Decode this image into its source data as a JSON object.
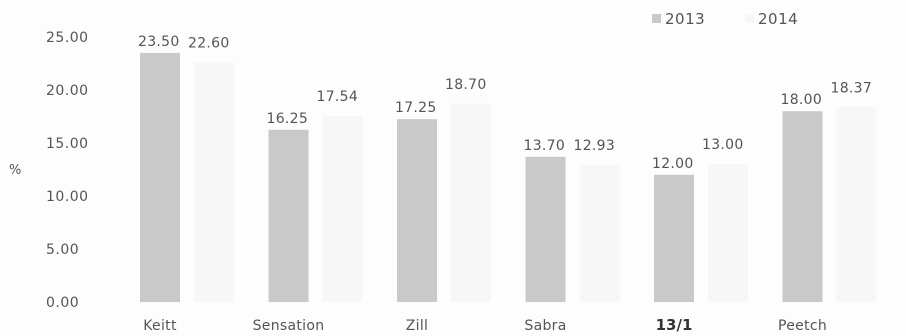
{
  "chart_data": {
    "type": "bar",
    "title": "",
    "xlabel": "",
    "ylabel": "%",
    "ylim": [
      0,
      25
    ],
    "yticks": [
      "0.00",
      "5.00",
      "10.00",
      "15.00",
      "20.00",
      "25.00"
    ],
    "categories": [
      "Keitt",
      "Sensation",
      "Zill",
      "Sabra",
      "13/1",
      "Peetch"
    ],
    "series": [
      {
        "name": "2013",
        "values": [
          23.5,
          16.25,
          17.25,
          13.7,
          12.0,
          18.0
        ],
        "labels": [
          "23.50",
          "16.25",
          "17.25",
          "13.70",
          "12.00",
          "18.00"
        ]
      },
      {
        "name": "2014",
        "values": [
          22.6,
          17.54,
          18.7,
          12.93,
          13.0,
          18.37
        ],
        "labels": [
          "22.60",
          "17.54",
          "18.70",
          "12.93",
          "13.00",
          "18.37"
        ]
      }
    ],
    "legend_position": "top-right",
    "grid": false,
    "colors": {
      "2013": "#c9c9c9",
      "2014": "#f7f7f7"
    }
  }
}
